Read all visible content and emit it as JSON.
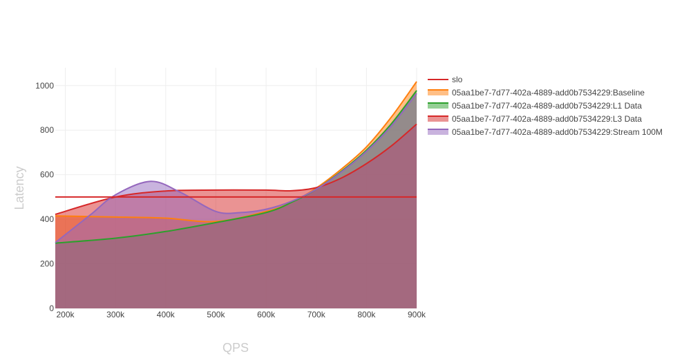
{
  "chart_data": {
    "type": "area",
    "xlabel": "QPS",
    "ylabel": "Latency",
    "xlim": [
      180000,
      900000
    ],
    "ylim": [
      0,
      1080
    ],
    "x_ticks": [
      200000,
      300000,
      400000,
      500000,
      600000,
      700000,
      800000,
      900000
    ],
    "x_tick_labels": [
      "200k",
      "300k",
      "400k",
      "500k",
      "600k",
      "700k",
      "800k",
      "900k"
    ],
    "y_ticks": [
      0,
      200,
      400,
      600,
      800,
      1000
    ],
    "y_tick_labels": [
      "0",
      "200",
      "400",
      "600",
      "800",
      "1000"
    ],
    "grid": true,
    "legend_position": "top-right",
    "slo": {
      "name": "slo",
      "value": 500,
      "color": "#d62728"
    },
    "series": [
      {
        "name": "05aa1be7-7d77-402a-4889-add0b7534229:Baseline",
        "color": "#ff7f0e",
        "x": [
          180000,
          300000,
          400000,
          500000,
          600000,
          650000,
          700000,
          750000,
          800000,
          850000,
          900000
        ],
        "y": [
          415,
          410,
          405,
          390,
          435,
          475,
          540,
          625,
          725,
          860,
          1018
        ]
      },
      {
        "name": "05aa1be7-7d77-402a-4889-add0b7534229:L1 Data",
        "color": "#2ca02c",
        "x": [
          180000,
          300000,
          400000,
          500000,
          600000,
          650000,
          700000,
          750000,
          800000,
          850000,
          900000
        ],
        "y": [
          293,
          315,
          345,
          385,
          430,
          475,
          535,
          615,
          710,
          830,
          978
        ]
      },
      {
        "name": "05aa1be7-7d77-402a-4889-add0b7534229:L3 Data",
        "color": "#d62728",
        "x": [
          180000,
          300000,
          400000,
          500000,
          600000,
          650000,
          700000,
          750000,
          800000,
          850000,
          900000
        ],
        "y": [
          422,
          500,
          527,
          531,
          531,
          528,
          542,
          585,
          650,
          730,
          827
        ]
      },
      {
        "name": "05aa1be7-7d77-402a-4889-add0b7534229:Stream 100M",
        "color": "#9467bd",
        "x": [
          180000,
          250000,
          300000,
          370000,
          430000,
          500000,
          550000,
          600000,
          650000,
          700000,
          750000,
          800000,
          850000,
          900000
        ],
        "y": [
          295,
          420,
          510,
          570,
          520,
          435,
          430,
          445,
          480,
          535,
          612,
          705,
          820,
          965
        ]
      }
    ]
  }
}
